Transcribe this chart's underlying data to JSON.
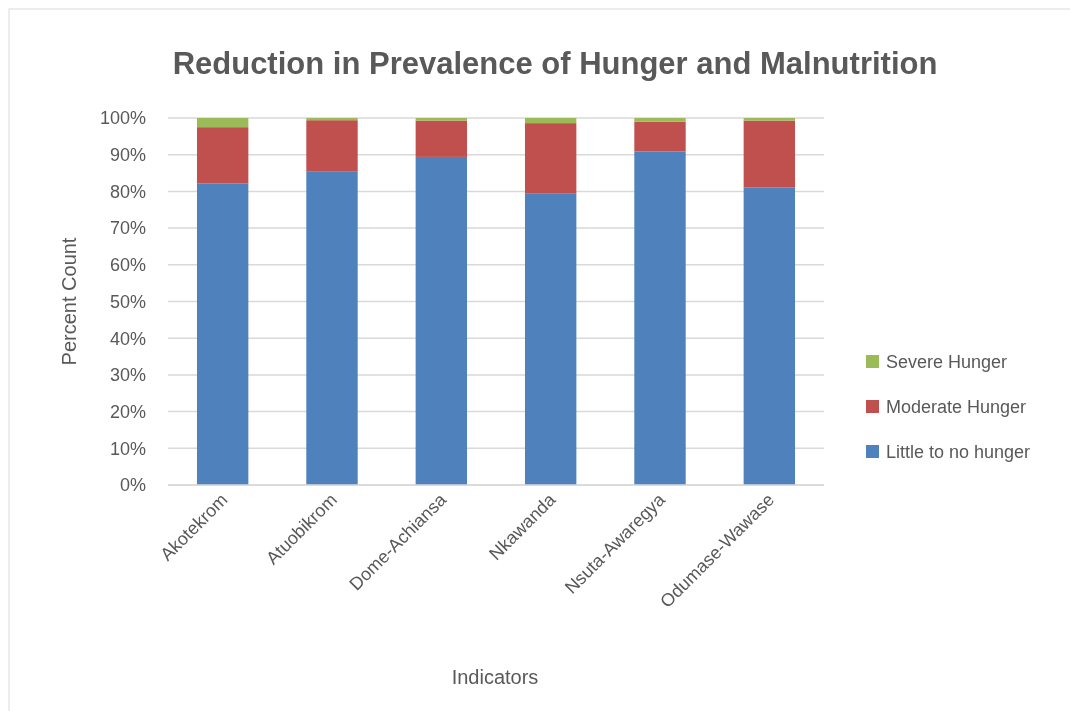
{
  "chart_data": {
    "type": "bar",
    "stacked": true,
    "title": "Reduction in Prevalence of Hunger and Malnutrition",
    "xlabel": "Indicators",
    "ylabel": "Percent Count",
    "categories": [
      "Akotekrom",
      "Atuobikrom",
      "Dome-Achiansa",
      "Nkawanda",
      "Nsuta-Awaregya",
      "Odumase-Wawase"
    ],
    "series": [
      {
        "name": "Little to no hunger",
        "color": "#4f81bd",
        "values": [
          82.2,
          85.5,
          89.4,
          79.5,
          90.9,
          81.1
        ]
      },
      {
        "name": "Moderate Hunger",
        "color": "#c0504d",
        "values": [
          15.3,
          13.9,
          9.9,
          19.1,
          8.1,
          18.2
        ]
      },
      {
        "name": "Severe Hunger",
        "color": "#9bbb59",
        "values": [
          2.5,
          0.6,
          0.7,
          1.4,
          1.0,
          0.7
        ]
      }
    ],
    "ylim": [
      0,
      100
    ],
    "yticks": [
      {
        "value": 0,
        "label": "0%"
      },
      {
        "value": 10,
        "label": "10%"
      },
      {
        "value": 20,
        "label": "20%"
      },
      {
        "value": 30,
        "label": "30%"
      },
      {
        "value": 40,
        "label": "40%"
      },
      {
        "value": 50,
        "label": "50%"
      },
      {
        "value": 60,
        "label": "60%"
      },
      {
        "value": 70,
        "label": "70%"
      },
      {
        "value": 80,
        "label": "80%"
      },
      {
        "value": 90,
        "label": "90%"
      },
      {
        "value": 100,
        "label": "100%"
      }
    ],
    "grid": "y",
    "legend": "right"
  }
}
